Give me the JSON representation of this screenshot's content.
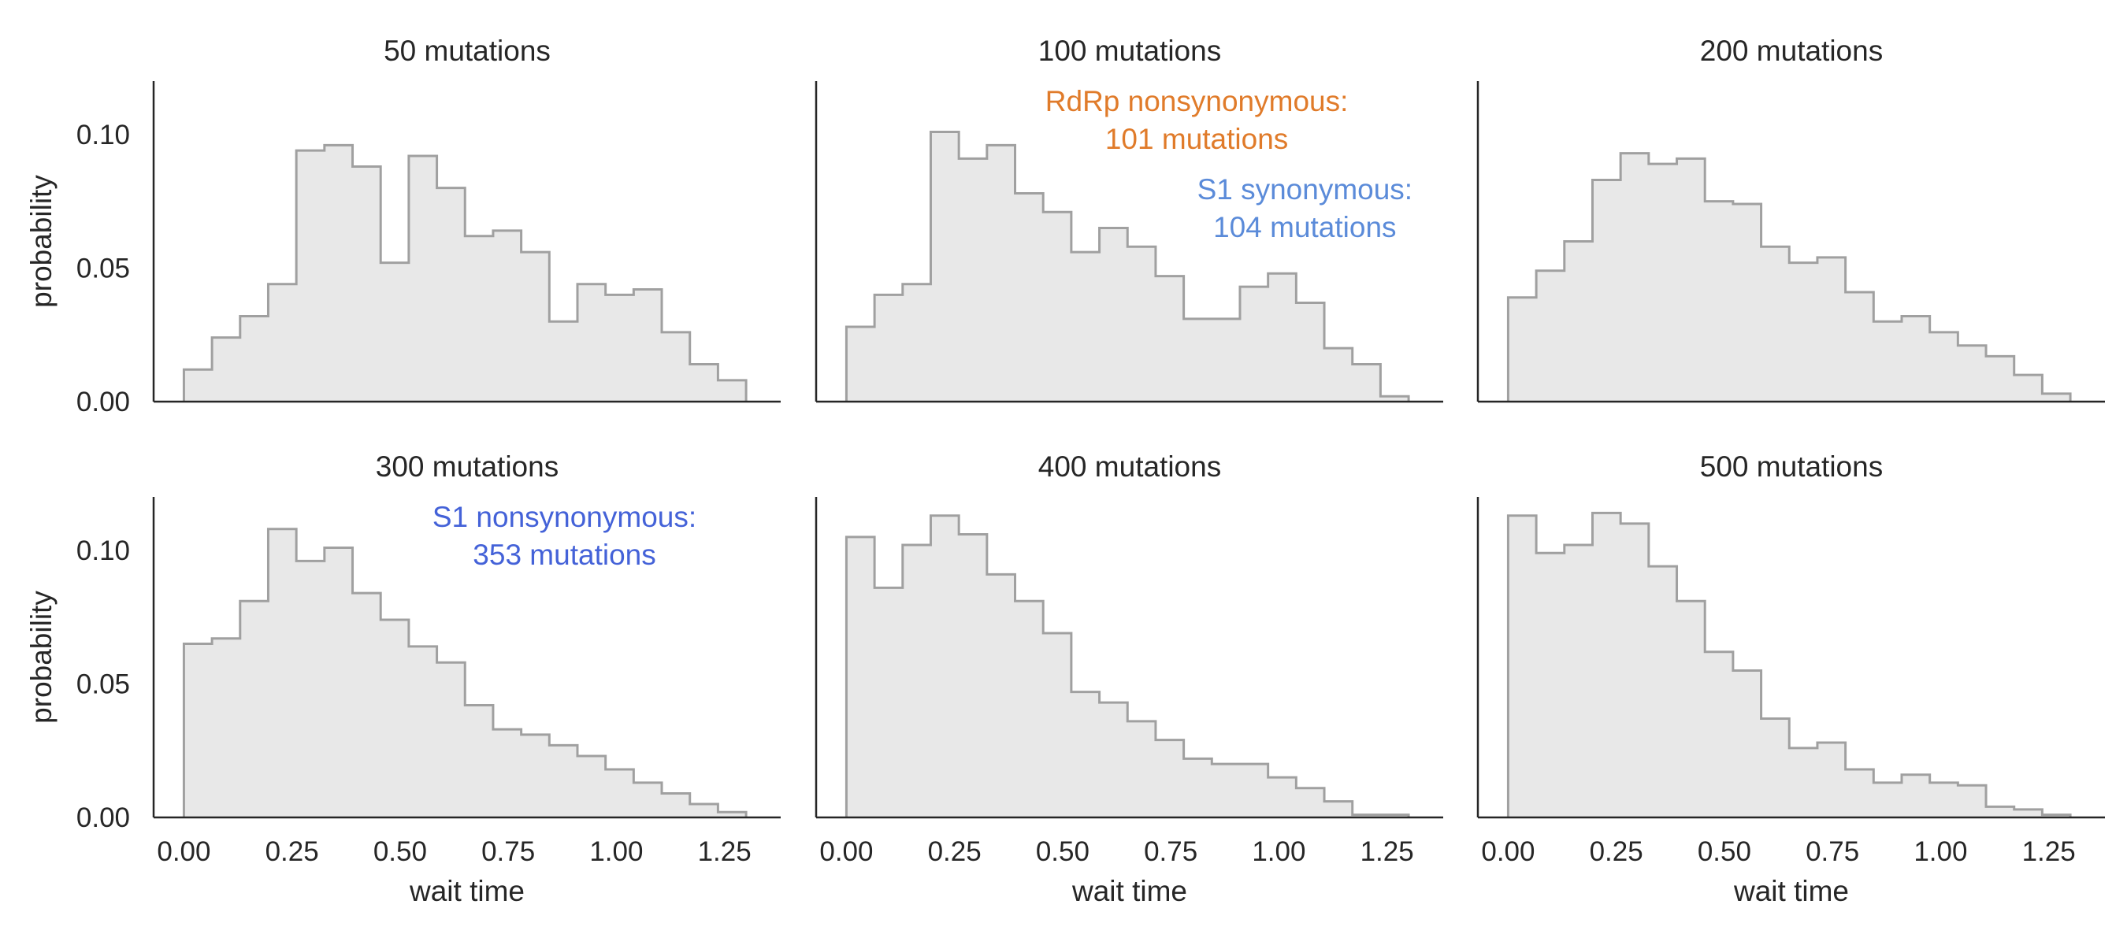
{
  "chart_data": {
    "type": "histogram-grid",
    "xlabel": "wait time",
    "ylabel": "probability",
    "xlim": [
      -0.07,
      1.38
    ],
    "ylim": [
      0,
      0.12
    ],
    "x_ticks": [
      "0.00",
      "0.25",
      "0.50",
      "0.75",
      "1.00",
      "1.25"
    ],
    "y_ticks": [
      "0.00",
      "0.05",
      "0.10"
    ],
    "bin_width": 0.065,
    "grid": false,
    "style": {
      "fill": "#e8e8e8",
      "stroke": "#a0a0a0",
      "axis": "#262626"
    },
    "panels": [
      {
        "title": "50 mutations",
        "bin_start": 0.0,
        "values": [
          0.012,
          0.024,
          0.032,
          0.044,
          0.094,
          0.096,
          0.088,
          0.052,
          0.092,
          0.08,
          0.062,
          0.064,
          0.056,
          0.03,
          0.044,
          0.04,
          0.042,
          0.026,
          0.014,
          0.008
        ],
        "annotations": []
      },
      {
        "title": "100 mutations",
        "bin_start": 0.0,
        "values": [
          0.028,
          0.04,
          0.044,
          0.101,
          0.091,
          0.096,
          0.078,
          0.071,
          0.056,
          0.065,
          0.058,
          0.047,
          0.031,
          0.031,
          0.043,
          0.048,
          0.037,
          0.02,
          0.014,
          0.002
        ],
        "annotations": [
          {
            "lines": [
              "RdRp nonsynonymous:",
              "101 mutations"
            ],
            "color": "#e07b2a",
            "x": 0.81,
            "y": 0.1
          },
          {
            "lines": [
              "S1 synonymous:",
              "104 mutations"
            ],
            "color": "#5b8bd9",
            "x": 1.06,
            "y": 0.067
          }
        ]
      },
      {
        "title": "200 mutations",
        "bin_start": 0.0,
        "values": [
          0.039,
          0.049,
          0.06,
          0.083,
          0.093,
          0.089,
          0.091,
          0.075,
          0.074,
          0.058,
          0.052,
          0.054,
          0.041,
          0.03,
          0.032,
          0.026,
          0.021,
          0.017,
          0.01,
          0.003
        ],
        "annotations": []
      },
      {
        "title": "300 mutations",
        "bin_start": 0.0,
        "values": [
          0.065,
          0.067,
          0.081,
          0.108,
          0.096,
          0.101,
          0.084,
          0.074,
          0.064,
          0.058,
          0.042,
          0.033,
          0.031,
          0.027,
          0.023,
          0.018,
          0.013,
          0.009,
          0.005,
          0.002
        ],
        "annotations": [
          {
            "lines": [
              "S1 nonsynonymous:",
              "353 mutations"
            ],
            "color": "#4462d8",
            "x": 0.88,
            "y": 0.1
          }
        ]
      },
      {
        "title": "400 mutations",
        "bin_start": 0.0,
        "values": [
          0.105,
          0.086,
          0.102,
          0.113,
          0.106,
          0.091,
          0.081,
          0.069,
          0.047,
          0.043,
          0.036,
          0.029,
          0.022,
          0.02,
          0.02,
          0.015,
          0.011,
          0.006,
          0.001,
          0.001
        ],
        "annotations": []
      },
      {
        "title": "500 mutations",
        "bin_start": 0.0,
        "values": [
          0.113,
          0.099,
          0.102,
          0.114,
          0.11,
          0.094,
          0.081,
          0.062,
          0.055,
          0.037,
          0.026,
          0.028,
          0.018,
          0.013,
          0.016,
          0.013,
          0.012,
          0.004,
          0.003,
          0.001
        ],
        "annotations": []
      }
    ]
  }
}
